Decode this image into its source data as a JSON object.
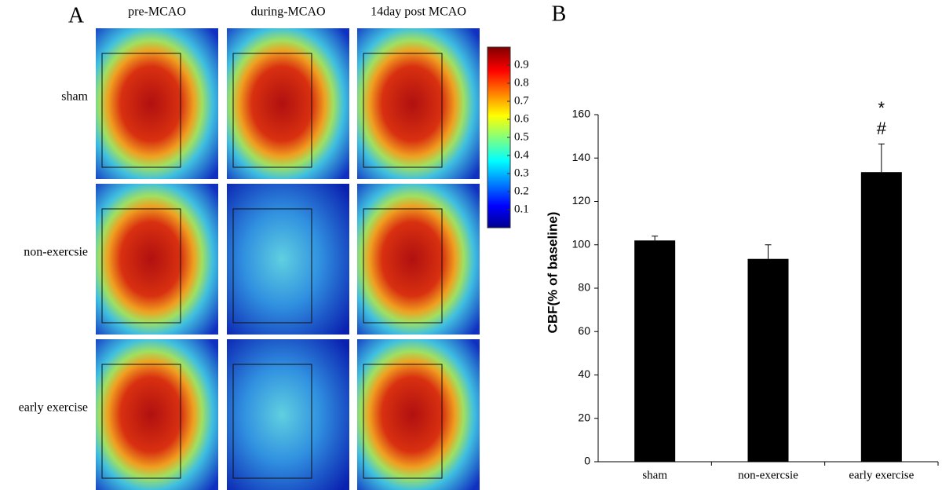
{
  "panel_a": {
    "label": "A",
    "columns": [
      "pre-MCAO",
      "during-MCAO",
      "14day post MCAO"
    ],
    "rows": [
      "sham",
      "non-exercsie",
      "early exercise"
    ],
    "colorbar": {
      "lim": [
        0,
        1
      ],
      "ticks": [
        0.1,
        0.2,
        0.3,
        0.4,
        0.5,
        0.6,
        0.7,
        0.8,
        0.9
      ]
    }
  },
  "chart_data": {
    "type": "bar",
    "panel_label": "B",
    "y_label": "CBF(% of baseline)",
    "categories": [
      "sham",
      "non-exercsie",
      "early exercise"
    ],
    "values": [
      102,
      93.5,
      133.5
    ],
    "errors": [
      2,
      6.5,
      13
    ],
    "color": "#000000",
    "annotations": [
      "*",
      "#"
    ],
    "ylim": [
      0,
      160
    ],
    "yticks": [
      0,
      20,
      40,
      60,
      80,
      100,
      120,
      140,
      160
    ],
    "grid": false
  }
}
